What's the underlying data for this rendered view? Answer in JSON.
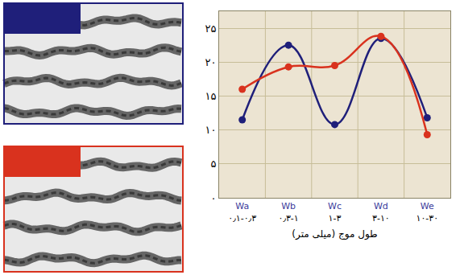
{
  "chart_data": {
    "type": "line",
    "x_label": "طول موج (میلی متر)",
    "categories": [
      "Wa\n۰٫۱-۰٫۳",
      "Wb\n۰٫۳-۱",
      "Wc\n۱-۳",
      "Wd\n۳-۱۰",
      "We\n۱۰-۳۰"
    ],
    "series": [
      {
        "color": "#1f1f7a",
        "marker": "circle",
        "line_style": "smooth",
        "values": [
          11.5,
          22.5,
          10.8,
          23.5,
          11.8
        ]
      },
      {
        "color": "#d9321e",
        "marker": "circle",
        "line_style": "smooth",
        "values": [
          16,
          19.3,
          19.5,
          23.8,
          9.3
        ]
      }
    ],
    "ylim": [
      0,
      27.5
    ],
    "yticks": [
      {
        "value": 0,
        "label": "۰"
      },
      {
        "value": 5,
        "label": "۵"
      },
      {
        "value": 10,
        "label": "۱۰"
      },
      {
        "value": 15,
        "label": "۱۵"
      },
      {
        "value": 20,
        "label": "۲۰"
      },
      {
        "value": 25,
        "label": "۲۵"
      }
    ],
    "grid": true
  }
}
